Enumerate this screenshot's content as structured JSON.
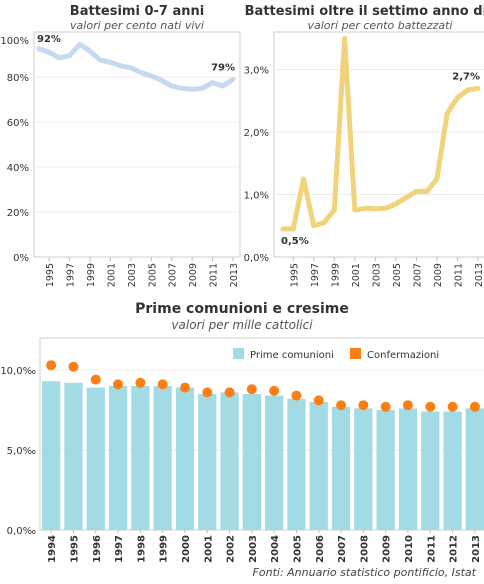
{
  "chart_data": [
    {
      "type": "line",
      "title": "Battesimi 0-7 anni",
      "subtitle": "valori per cento nati vivi",
      "x": [
        1994,
        1995,
        1996,
        1997,
        1998,
        1999,
        2000,
        2001,
        2002,
        2003,
        2004,
        2005,
        2006,
        2007,
        2008,
        2009,
        2010,
        2011,
        2012,
        2013
      ],
      "x_tick_labels": [
        "1995",
        "1997",
        "1999",
        "2001",
        "2003",
        "2005",
        "2007",
        "2009",
        "2011",
        "2013"
      ],
      "y_tick_labels": [
        "0%",
        "20%",
        "40%",
        "60%",
        "80%",
        "100%"
      ],
      "ylim": [
        0,
        100
      ],
      "series": [
        {
          "values": [
            92.5,
            91,
            88.5,
            89.5,
            94.5,
            91.5,
            87.5,
            86.5,
            85,
            84,
            82,
            80.5,
            78.5,
            76,
            75,
            74.5,
            75,
            77.5,
            76,
            79
          ]
        }
      ],
      "annotations": [
        {
          "text": "92%",
          "at": "start"
        },
        {
          "text": "79%",
          "at": "end"
        }
      ],
      "color": "#c6d9f1",
      "grid": true
    },
    {
      "type": "line",
      "title": "Battesimi oltre il settimo anno di età",
      "subtitle": "valori per cento battezzati",
      "x": [
        1994,
        1995,
        1996,
        1997,
        1998,
        1999,
        2000,
        2001,
        2002,
        2003,
        2004,
        2005,
        2006,
        2007,
        2008,
        2009,
        2010,
        2011,
        2012,
        2013
      ],
      "x_tick_labels": [
        "1995",
        "1997",
        "1999",
        "2001",
        "2003",
        "2005",
        "2007",
        "2009",
        "2011",
        "2013"
      ],
      "y_tick_labels": [
        "0,0%",
        "1,0%",
        "2,0%",
        "3,0%"
      ],
      "ylim": [
        0,
        3.6
      ],
      "series": [
        {
          "values": [
            0.45,
            0.45,
            1.25,
            0.5,
            0.55,
            0.75,
            3.5,
            0.75,
            0.78,
            0.77,
            0.78,
            0.85,
            0.95,
            1.05,
            1.05,
            1.25,
            2.3,
            2.55,
            2.67,
            2.7
          ]
        }
      ],
      "annotations": [
        {
          "text": "0,5%",
          "at": "start"
        },
        {
          "text": "2,7%",
          "at": "end"
        }
      ],
      "color": "#f0d37a",
      "grid": true
    },
    {
      "type": "bar",
      "title": "Prime comunioni e cresime",
      "subtitle": "valori per mille cattolici",
      "categories": [
        "1994",
        "1995",
        "1996",
        "1997",
        "1998",
        "1999",
        "2000",
        "2001",
        "2002",
        "2003",
        "2004",
        "2005",
        "2006",
        "2007",
        "2008",
        "2009",
        "2010",
        "2011",
        "2012",
        "2013"
      ],
      "y_tick_labels": [
        "0,0‰",
        "5,0‰",
        "10,0‰"
      ],
      "ylim": [
        0,
        12
      ],
      "legend_position": "top-right",
      "series": [
        {
          "name": "Prime comunioni",
          "kind": "bar",
          "color": "#a3dbe4",
          "values": [
            9.3,
            9.2,
            8.9,
            9.0,
            9.0,
            9.0,
            8.9,
            8.5,
            8.6,
            8.5,
            8.4,
            8.2,
            8.0,
            7.7,
            7.6,
            7.5,
            7.6,
            7.4,
            7.4,
            7.6
          ]
        },
        {
          "name": "Confermazioni",
          "kind": "dot",
          "color": "#fb7f14",
          "values": [
            10.3,
            10.2,
            9.4,
            9.1,
            9.2,
            9.1,
            8.9,
            8.6,
            8.6,
            8.8,
            8.7,
            8.4,
            8.1,
            7.8,
            7.8,
            7.7,
            7.8,
            7.7,
            7.7,
            7.7
          ]
        }
      ],
      "grid": true
    }
  ],
  "source": "Fonti: Annuario statistico pontificio, Istat"
}
